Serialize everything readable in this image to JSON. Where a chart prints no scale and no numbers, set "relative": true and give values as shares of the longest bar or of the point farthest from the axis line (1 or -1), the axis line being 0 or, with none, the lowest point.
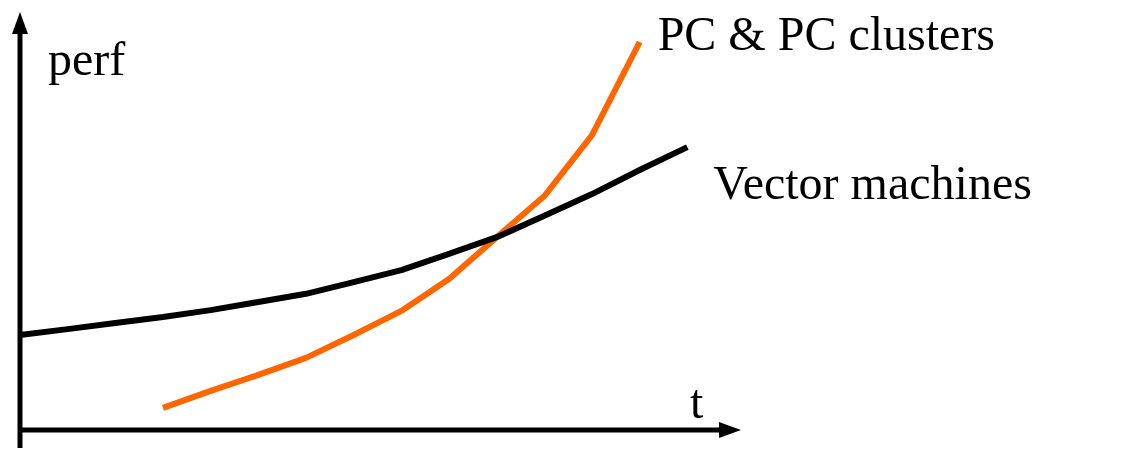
{
  "chart_data": {
    "type": "line",
    "relative": true,
    "xlabel": "t",
    "ylabel": "perf",
    "legend": false,
    "categories": [
      null,
      null,
      null,
      null,
      null,
      null,
      null,
      null,
      null,
      null,
      null,
      null,
      null,
      null,
      null
    ],
    "series": [
      {
        "name": "PC & PC clusters",
        "color": "#ff6600",
        "values": [
          null,
          null,
          null,
          0.057,
          0.101,
          0.142,
          0.186,
          0.245,
          0.307,
          0.389,
          0.497,
          0.603,
          0.76,
          1,
          null
        ]
      },
      {
        "name": "Vector machines",
        "color": "#000000",
        "values": [
          0.245,
          0.26,
          0.276,
          0.291,
          0.309,
          0.33,
          0.351,
          0.381,
          0.412,
          0.454,
          0.497,
          0.552,
          0.608,
          0.67,
          0.729
        ]
      }
    ]
  }
}
